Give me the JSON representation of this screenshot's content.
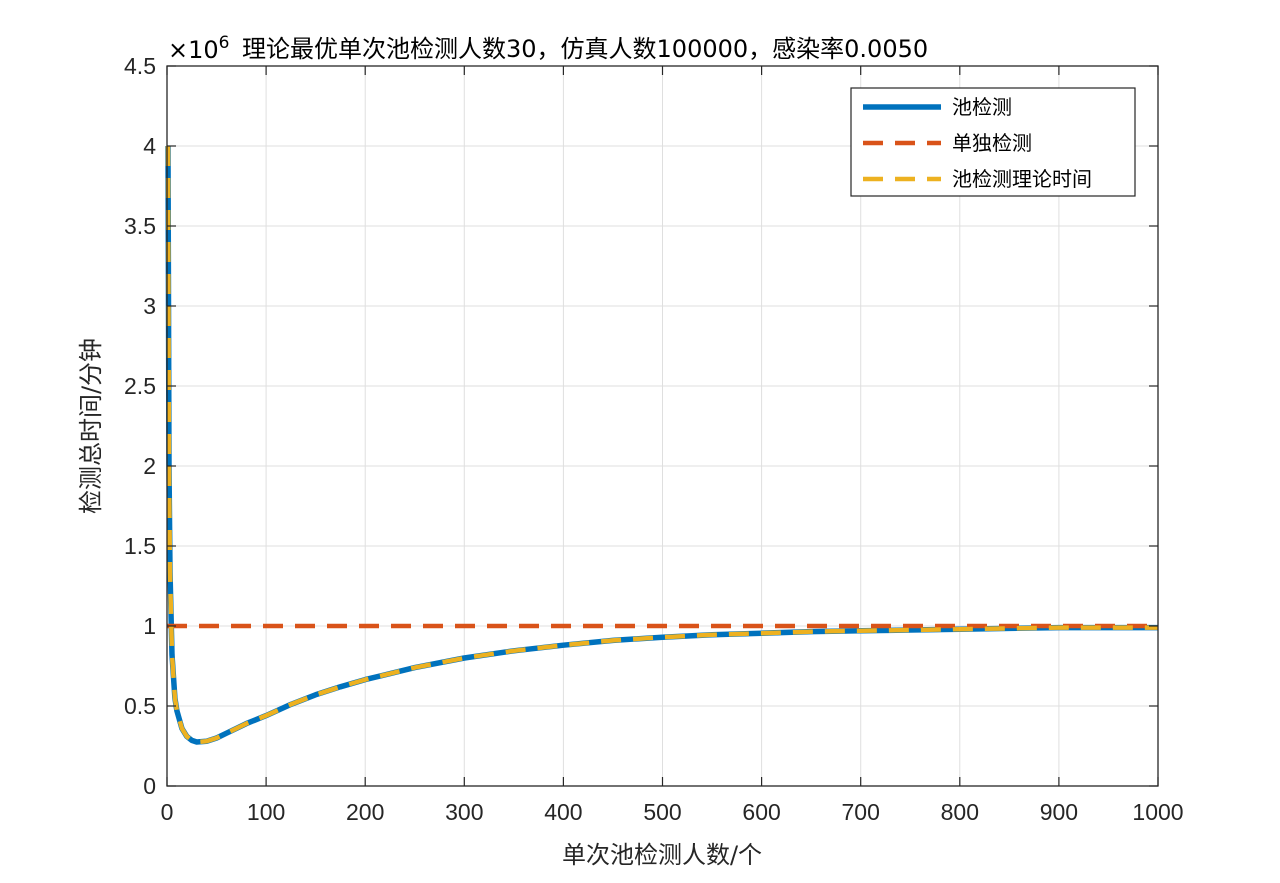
{
  "chart_data": {
    "type": "line",
    "title": "理论最优单次池检测人数30，仿真人数100000，感染率0.0050",
    "exponent_base": "×10",
    "exponent_power": "6",
    "xlabel": "单次池检测人数/个",
    "ylabel": "检测总时间/分钟",
    "xlim": [
      0,
      1000
    ],
    "ylim": [
      0,
      4.5
    ],
    "xticks": [
      0,
      100,
      200,
      300,
      400,
      500,
      600,
      700,
      800,
      900,
      1000
    ],
    "yticks": [
      0,
      0.5,
      1,
      1.5,
      2,
      2.5,
      3,
      3.5,
      4,
      4.5
    ],
    "xtick_labels": [
      "0",
      "100",
      "200",
      "300",
      "400",
      "500",
      "600",
      "700",
      "800",
      "900",
      "1000"
    ],
    "ytick_labels": [
      "0",
      "0.5",
      "1",
      "1.5",
      "2",
      "2.5",
      "3",
      "3.5",
      "4",
      "4.5"
    ],
    "grid": true,
    "legend_position": "top-right",
    "series": [
      {
        "name": "池检测",
        "color": "#0072BD",
        "style": "solid",
        "x": [
          1,
          2,
          3,
          5,
          8,
          10,
          15,
          20,
          25,
          30,
          40,
          50,
          60,
          80,
          100,
          125,
          150,
          175,
          200,
          250,
          300,
          350,
          400,
          450,
          500,
          550,
          600,
          650,
          700,
          750,
          800,
          850,
          900,
          950,
          1000
        ],
        "values": [
          4.0,
          2.0,
          1.34,
          0.82,
          0.55,
          0.47,
          0.36,
          0.31,
          0.285,
          0.275,
          0.28,
          0.3,
          0.33,
          0.39,
          0.44,
          0.51,
          0.57,
          0.62,
          0.665,
          0.74,
          0.8,
          0.845,
          0.88,
          0.91,
          0.93,
          0.945,
          0.955,
          0.965,
          0.97,
          0.975,
          0.98,
          0.985,
          0.99,
          0.99,
          0.99
        ]
      },
      {
        "name": "单独检测",
        "color": "#D95319",
        "style": "dashed",
        "x": [
          0,
          1000
        ],
        "values": [
          1.0,
          1.0
        ]
      },
      {
        "name": "池检测理论时间",
        "color": "#EDB120",
        "style": "dashed",
        "x": [
          1,
          2,
          3,
          5,
          8,
          10,
          15,
          20,
          25,
          30,
          40,
          50,
          60,
          80,
          100,
          125,
          150,
          175,
          200,
          250,
          300,
          350,
          400,
          450,
          500,
          550,
          600,
          650,
          700,
          750,
          800,
          850,
          900,
          950,
          1000
        ],
        "values": [
          4.0,
          2.0,
          1.34,
          0.82,
          0.55,
          0.47,
          0.36,
          0.31,
          0.285,
          0.275,
          0.28,
          0.3,
          0.33,
          0.39,
          0.44,
          0.51,
          0.57,
          0.62,
          0.665,
          0.74,
          0.8,
          0.845,
          0.88,
          0.91,
          0.93,
          0.945,
          0.955,
          0.965,
          0.97,
          0.975,
          0.98,
          0.985,
          0.99,
          0.99,
          0.99
        ]
      }
    ]
  }
}
